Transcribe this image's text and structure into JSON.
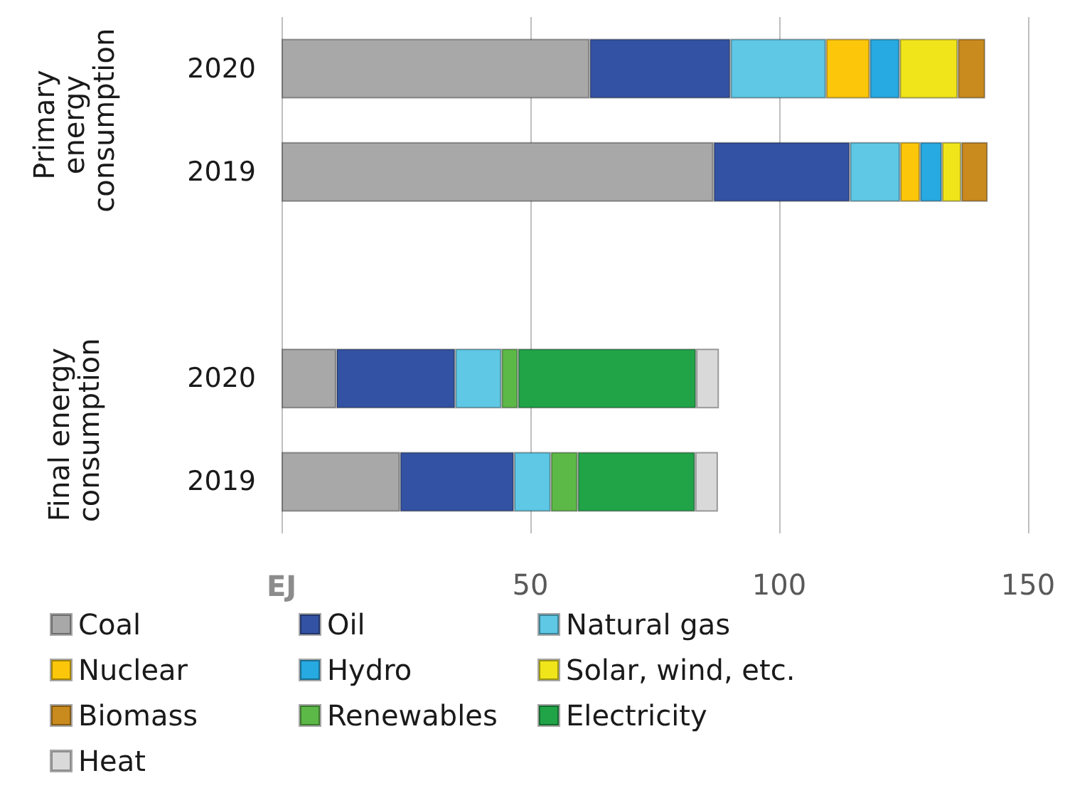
{
  "chart_data": {
    "type": "bar",
    "orientation": "horizontal",
    "stacked": true,
    "xlabel": "EJ",
    "categories": [
      "2020",
      "2019",
      null,
      "2020",
      "2019"
    ],
    "annotations": [
      "Primary energy consumption",
      "Final energy consumption"
    ],
    "series": [
      {
        "name": "Coal",
        "color": "#a8a8a8",
        "values": [
          61.9,
          86.8,
          null,
          11.0,
          23.8
        ]
      },
      {
        "name": "Oil",
        "color": "#3352a3",
        "values": [
          28.3,
          27.4,
          null,
          23.9,
          22.9
        ]
      },
      {
        "name": "Natural gas",
        "color": "#5ec8e5",
        "values": [
          19.2,
          10.1,
          null,
          9.3,
          7.4
        ]
      },
      {
        "name": "Nuclear",
        "color": "#fcc70a",
        "values": [
          8.8,
          4.0,
          null,
          null,
          null
        ]
      },
      {
        "name": "Hydro",
        "color": "#27a9e1",
        "values": [
          6.0,
          4.4,
          null,
          null,
          null
        ]
      },
      {
        "name": "Solar, wind, etc.",
        "color": "#f0e51b",
        "values": [
          11.7,
          3.9,
          null,
          null,
          null
        ]
      },
      {
        "name": "Biomass",
        "color": "#c98a1e",
        "values": [
          5.5,
          5.3,
          null,
          null,
          null
        ]
      },
      {
        "name": "Renewables",
        "color": "#5db947",
        "values": [
          null,
          null,
          null,
          3.3,
          5.4
        ]
      },
      {
        "name": "Electricity",
        "color": "#21a448",
        "values": [
          null,
          null,
          null,
          35.8,
          23.6
        ]
      },
      {
        "name": "Heat",
        "color": "#d9d9d9",
        "values": [
          null,
          null,
          null,
          4.6,
          4.6
        ]
      }
    ],
    "xlim": [
      0,
      150
    ],
    "xticks": [
      {
        "value": 0,
        "label": null
      },
      50,
      100,
      150
    ],
    "grid": "x",
    "legend": "bottom"
  }
}
